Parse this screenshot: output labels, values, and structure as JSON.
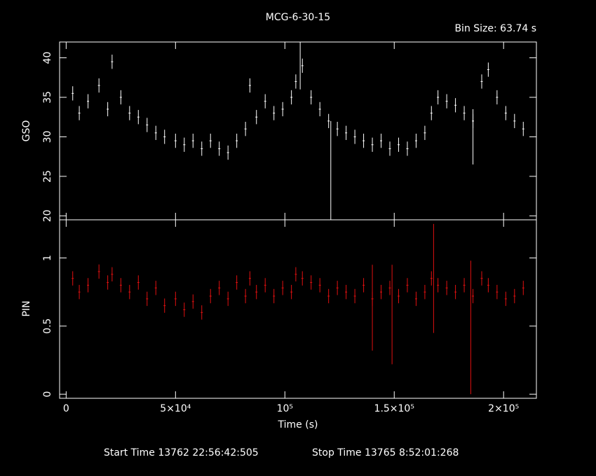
{
  "chart_data": [
    {
      "type": "scatter",
      "panel": "top",
      "title": "MCG-6-30-15",
      "bin_size_label": "Bin Size: 63.74 s",
      "ylabel": "GSO",
      "ylim": [
        19.5,
        42
      ],
      "xlim": [
        -3000,
        215000
      ],
      "yticks": [
        "20",
        "25",
        "30",
        "35",
        "40"
      ],
      "ytick_values": [
        20,
        25,
        30,
        35,
        40
      ],
      "color": "#ffffff",
      "series": [
        {
          "x": [
            3000,
            6000,
            10000,
            15000,
            19000,
            21000,
            25000,
            29000,
            33000,
            37000,
            41000,
            45000,
            50000,
            54000,
            58000,
            62000,
            66000,
            70000,
            74000,
            78000,
            82000,
            84000,
            87000,
            91000,
            95000,
            99000,
            103000,
            105000,
            108000,
            112000,
            116000,
            120000,
            124000,
            128000,
            132000,
            136000,
            140000,
            144000,
            148000,
            152000,
            156000,
            160000,
            164000,
            167000,
            170000,
            174000,
            178000,
            182000,
            186000,
            190000,
            193000,
            197000,
            201000,
            205000,
            209000
          ],
          "y": [
            35.5,
            33.0,
            34.5,
            36.5,
            33.5,
            39.5,
            35.0,
            33.0,
            32.5,
            31.5,
            30.5,
            30.0,
            29.5,
            29.0,
            29.5,
            28.5,
            29.5,
            28.5,
            28.0,
            29.5,
            31.0,
            36.5,
            32.5,
            34.5,
            33.0,
            33.5,
            35.0,
            37.0,
            39.0,
            35.0,
            33.5,
            32.0,
            31.0,
            30.5,
            30.0,
            29.5,
            29.0,
            29.5,
            28.5,
            29.0,
            28.5,
            29.5,
            30.5,
            33.0,
            35.0,
            34.5,
            34.0,
            33.0,
            32.0,
            37.0,
            38.5,
            35.0,
            33.0,
            32.0,
            31.0
          ]
        }
      ],
      "outliers": [
        {
          "x": 107000,
          "y_low": 36.0,
          "y_high": 42.0
        },
        {
          "x": 121000,
          "y_low": 19.5,
          "y_high": 32.0
        },
        {
          "x": 186000,
          "y_low": 26.5,
          "y_high": 33.5
        }
      ]
    },
    {
      "type": "scatter",
      "panel": "bottom",
      "ylabel": "PIN",
      "xlabel": "Time (s)",
      "ylim": [
        -0.03,
        1.28
      ],
      "xlim": [
        -3000,
        215000
      ],
      "yticks": [
        "0",
        "0.5",
        "1"
      ],
      "ytick_values": [
        0,
        0.5,
        1
      ],
      "xticks": [
        "0",
        "5×10⁴",
        "10⁵",
        "1.5×10⁵",
        "2×10⁵"
      ],
      "xtick_values": [
        0,
        50000,
        100000,
        150000,
        200000
      ],
      "color": "#e01010",
      "series": [
        {
          "x": [
            3000,
            6000,
            10000,
            15000,
            19000,
            21000,
            25000,
            29000,
            33000,
            37000,
            41000,
            45000,
            50000,
            54000,
            58000,
            62000,
            66000,
            70000,
            74000,
            78000,
            82000,
            84000,
            87000,
            91000,
            95000,
            99000,
            103000,
            105000,
            108000,
            112000,
            116000,
            120000,
            124000,
            128000,
            132000,
            136000,
            140000,
            144000,
            148000,
            152000,
            156000,
            160000,
            164000,
            167000,
            170000,
            174000,
            178000,
            182000,
            186000,
            190000,
            193000,
            197000,
            201000,
            205000,
            209000
          ],
          "y": [
            0.85,
            0.75,
            0.8,
            0.9,
            0.82,
            0.88,
            0.8,
            0.75,
            0.82,
            0.7,
            0.78,
            0.65,
            0.7,
            0.62,
            0.68,
            0.6,
            0.72,
            0.78,
            0.7,
            0.82,
            0.72,
            0.85,
            0.75,
            0.8,
            0.72,
            0.78,
            0.75,
            0.88,
            0.85,
            0.82,
            0.8,
            0.72,
            0.78,
            0.75,
            0.72,
            0.8,
            0.7,
            0.75,
            0.78,
            0.72,
            0.8,
            0.7,
            0.75,
            0.85,
            0.8,
            0.78,
            0.75,
            0.8,
            0.72,
            0.85,
            0.8,
            0.75,
            0.7,
            0.72,
            0.78
          ]
        }
      ],
      "outliers": [
        {
          "x": 140000,
          "y_low": 0.32,
          "y_high": 0.95
        },
        {
          "x": 149000,
          "y_low": 0.22,
          "y_high": 0.95
        },
        {
          "x": 168000,
          "y_low": 0.45,
          "y_high": 1.25
        },
        {
          "x": 185000,
          "y_low": 0.0,
          "y_high": 0.98
        }
      ]
    }
  ],
  "footer": {
    "start_time": "Start Time 13762 22:56:42:505",
    "stop_time": "Stop Time 13765  8:52:01:268"
  }
}
